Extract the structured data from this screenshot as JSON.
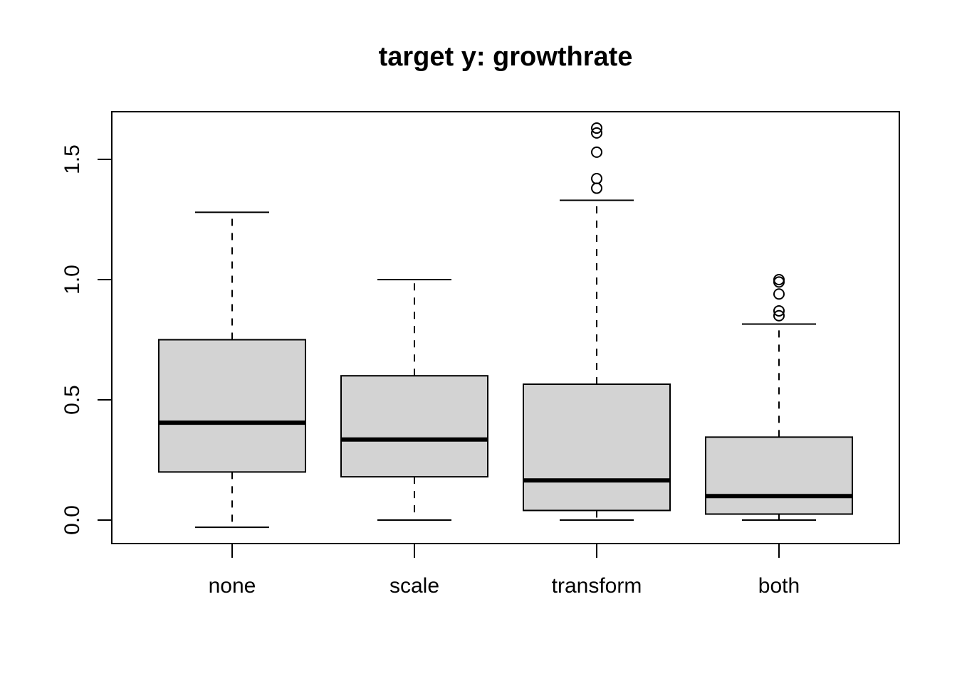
{
  "chart_data": {
    "type": "boxplot",
    "title": "target y: growthrate",
    "xlabel": "",
    "ylabel": "",
    "ylim": [
      -0.1,
      1.7
    ],
    "yticks": [
      0.0,
      0.5,
      1.0,
      1.5
    ],
    "ytick_labels": [
      "0.0",
      "0.5",
      "1.0",
      "1.5"
    ],
    "categories": [
      "none",
      "scale",
      "transform",
      "both"
    ],
    "boxes": [
      {
        "label": "none",
        "whisker_low": -0.03,
        "q1": 0.2,
        "median": 0.405,
        "q3": 0.75,
        "whisker_high": 1.28,
        "outliers": []
      },
      {
        "label": "scale",
        "whisker_low": 0.0,
        "q1": 0.18,
        "median": 0.335,
        "q3": 0.6,
        "whisker_high": 1.0,
        "outliers": []
      },
      {
        "label": "transform",
        "whisker_low": 0.0,
        "q1": 0.04,
        "median": 0.165,
        "q3": 0.565,
        "whisker_high": 1.33,
        "outliers": [
          1.38,
          1.42,
          1.53,
          1.61,
          1.63
        ]
      },
      {
        "label": "both",
        "whisker_low": 0.0,
        "q1": 0.025,
        "median": 0.1,
        "q3": 0.345,
        "whisker_high": 0.815,
        "outliers": [
          0.85,
          0.87,
          0.94,
          0.99,
          1.0
        ]
      }
    ],
    "box_fill": "#d3d3d3",
    "line_color": "#000000",
    "grid": false,
    "legend": "none"
  }
}
